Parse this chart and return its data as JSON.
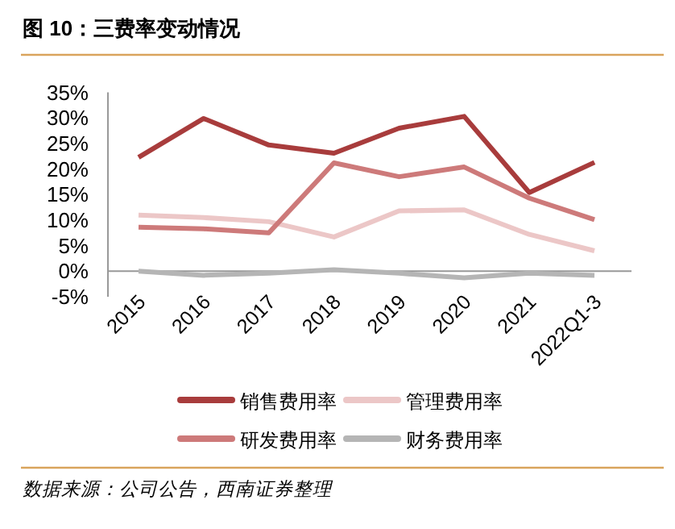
{
  "chart_data": {
    "type": "line",
    "title": "图 10：三费率变动情况",
    "annotations": [
      "数据来源：公司公告，西南证券整理"
    ],
    "categories": [
      "2015",
      "2016",
      "2017",
      "2018",
      "2019",
      "2020",
      "2021",
      "2022Q1-3"
    ],
    "ylim": [
      -5,
      35
    ],
    "yticks": [
      {
        "value": -5,
        "label": "-5%"
      },
      {
        "value": 0,
        "label": "0%"
      },
      {
        "value": 5,
        "label": "5%"
      },
      {
        "value": 10,
        "label": "10%"
      },
      {
        "value": 15,
        "label": "15%"
      },
      {
        "value": 20,
        "label": "20%"
      },
      {
        "value": 25,
        "label": "25%"
      },
      {
        "value": 30,
        "label": "30%"
      },
      {
        "value": 35,
        "label": "35%"
      }
    ],
    "grid": false,
    "legend": "bottom",
    "marker": "none",
    "line_style": "solid",
    "series": [
      {
        "name": "销售费用率",
        "color": "#a83c3c",
        "values": [
          22.3,
          29.9,
          24.7,
          23.1,
          28.0,
          30.3,
          15.4,
          21.3
        ]
      },
      {
        "name": "管理费用率",
        "color": "#ecc7c7",
        "values": [
          11.0,
          10.5,
          9.7,
          6.7,
          11.8,
          12.0,
          7.2,
          4.0
        ]
      },
      {
        "name": "研发费用率",
        "color": "#cd7a7a",
        "values": [
          8.6,
          8.3,
          7.5,
          21.2,
          18.5,
          20.4,
          14.3,
          10.1
        ]
      },
      {
        "name": "财务费用率",
        "color": "#b5b5b5",
        "values": [
          0.0,
          -0.8,
          -0.4,
          0.3,
          -0.4,
          -1.3,
          -0.4,
          -0.8
        ]
      }
    ]
  }
}
